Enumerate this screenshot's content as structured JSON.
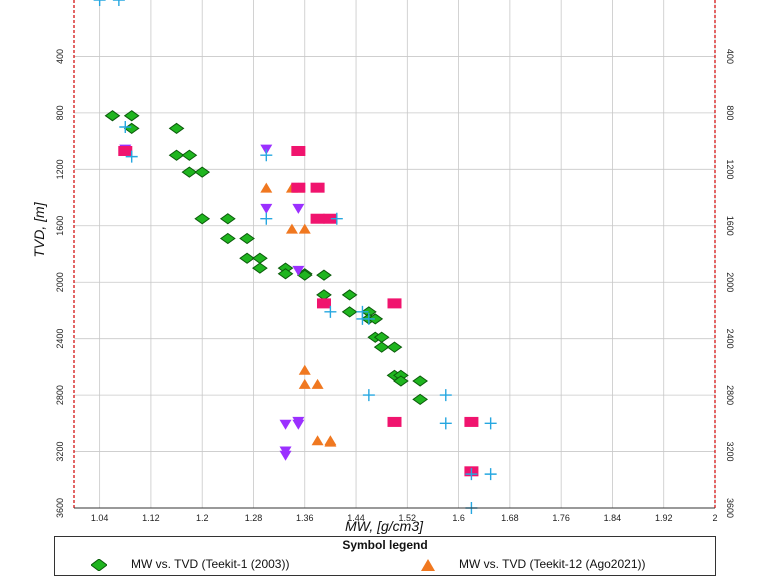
{
  "chart_data": {
    "type": "scatter",
    "xlabel": "MW, [g/cm3]",
    "ylabel": "TVD, [m]",
    "xlim": [
      1.0,
      2.0
    ],
    "ylim": [
      3600,
      0
    ],
    "y_axis_inverted": true,
    "grid": true,
    "x_ticks": [
      "1.04",
      "1.12",
      "1.2",
      "1.28",
      "1.36",
      "1.44",
      "1.52",
      "1.6",
      "1.68",
      "1.76",
      "1.84",
      "1.92",
      "2"
    ],
    "y_ticks": [
      "400",
      "800",
      "1200",
      "1600",
      "2000",
      "2400",
      "2800",
      "3200",
      "3600"
    ],
    "right_axis_ticks": [
      "400",
      "800",
      "1200",
      "1600",
      "2000",
      "2400",
      "2800",
      "3200",
      "3600"
    ],
    "legend": {
      "title": "Symbol legend",
      "placement": "bottom",
      "visible_entries": [
        "MW vs. TVD (Teekit-1 (2003))",
        "MW vs. TVD (Teekit-12 (Ago2021))"
      ]
    },
    "series": [
      {
        "name": "MW vs. TVD (Teekit-1 (2003))",
        "marker": "diamond",
        "color": "#1fb51f",
        "points": [
          [
            1.06,
            820
          ],
          [
            1.09,
            820
          ],
          [
            1.09,
            910
          ],
          [
            1.16,
            910
          ],
          [
            1.16,
            1100
          ],
          [
            1.18,
            1100
          ],
          [
            1.18,
            1220
          ],
          [
            1.2,
            1220
          ],
          [
            1.2,
            1550
          ],
          [
            1.24,
            1550
          ],
          [
            1.24,
            1690
          ],
          [
            1.27,
            1690
          ],
          [
            1.27,
            1830
          ],
          [
            1.29,
            1830
          ],
          [
            1.29,
            1900
          ],
          [
            1.33,
            1900
          ],
          [
            1.33,
            1940
          ],
          [
            1.36,
            1940
          ],
          [
            1.36,
            1950
          ],
          [
            1.39,
            1950
          ],
          [
            1.39,
            2090
          ],
          [
            1.43,
            2090
          ],
          [
            1.43,
            2210
          ],
          [
            1.46,
            2210
          ],
          [
            1.46,
            2260
          ],
          [
            1.47,
            2260
          ],
          [
            1.47,
            2390
          ],
          [
            1.48,
            2390
          ],
          [
            1.48,
            2460
          ],
          [
            1.5,
            2460
          ],
          [
            1.5,
            2660
          ],
          [
            1.51,
            2660
          ],
          [
            1.51,
            2700
          ],
          [
            1.54,
            2700
          ],
          [
            1.54,
            2830
          ]
        ]
      },
      {
        "name": "MW vs. TVD (Teekit-12 (Ago2021))",
        "marker": "triangle-up",
        "color": "#f07820",
        "points": [
          [
            1.3,
            1330
          ],
          [
            1.34,
            1330
          ],
          [
            1.35,
            1330
          ],
          [
            1.34,
            1620
          ],
          [
            1.36,
            1620
          ],
          [
            1.36,
            2620
          ],
          [
            1.36,
            2720
          ],
          [
            1.38,
            2720
          ],
          [
            1.38,
            3120
          ],
          [
            1.4,
            3120
          ],
          [
            1.4,
            3130
          ]
        ]
      },
      {
        "marker": "triangle-down",
        "color": "#9b30ff",
        "points": [
          [
            1.08,
            1060
          ],
          [
            1.3,
            1060
          ],
          [
            1.3,
            1480
          ],
          [
            1.35,
            1480
          ],
          [
            1.35,
            1920
          ],
          [
            1.33,
            3010
          ],
          [
            1.35,
            2990
          ],
          [
            1.35,
            3010
          ],
          [
            1.33,
            3200
          ],
          [
            1.33,
            3230
          ]
        ]
      },
      {
        "marker": "square",
        "color": "#f0146e",
        "points": [
          [
            1.08,
            1070
          ],
          [
            1.35,
            1070
          ],
          [
            1.35,
            1330
          ],
          [
            1.38,
            1330
          ],
          [
            1.38,
            1550
          ],
          [
            1.4,
            1550
          ],
          [
            1.39,
            2150
          ],
          [
            1.5,
            2150
          ],
          [
            1.5,
            2990
          ],
          [
            1.62,
            2990
          ],
          [
            1.62,
            3340
          ]
        ]
      },
      {
        "marker": "plus",
        "color": "#26a7e0",
        "points": [
          [
            1.04,
            0
          ],
          [
            1.07,
            0
          ],
          [
            1.08,
            900
          ],
          [
            1.09,
            1110
          ],
          [
            1.3,
            1100
          ],
          [
            1.3,
            1550
          ],
          [
            1.41,
            1550
          ],
          [
            1.4,
            2210
          ],
          [
            1.45,
            2210
          ],
          [
            1.45,
            2260
          ],
          [
            1.46,
            2260
          ],
          [
            1.46,
            2800
          ],
          [
            1.58,
            2800
          ],
          [
            1.58,
            3000
          ],
          [
            1.65,
            3000
          ],
          [
            1.62,
            3360
          ],
          [
            1.65,
            3360
          ],
          [
            1.62,
            3600
          ]
        ]
      }
    ]
  }
}
